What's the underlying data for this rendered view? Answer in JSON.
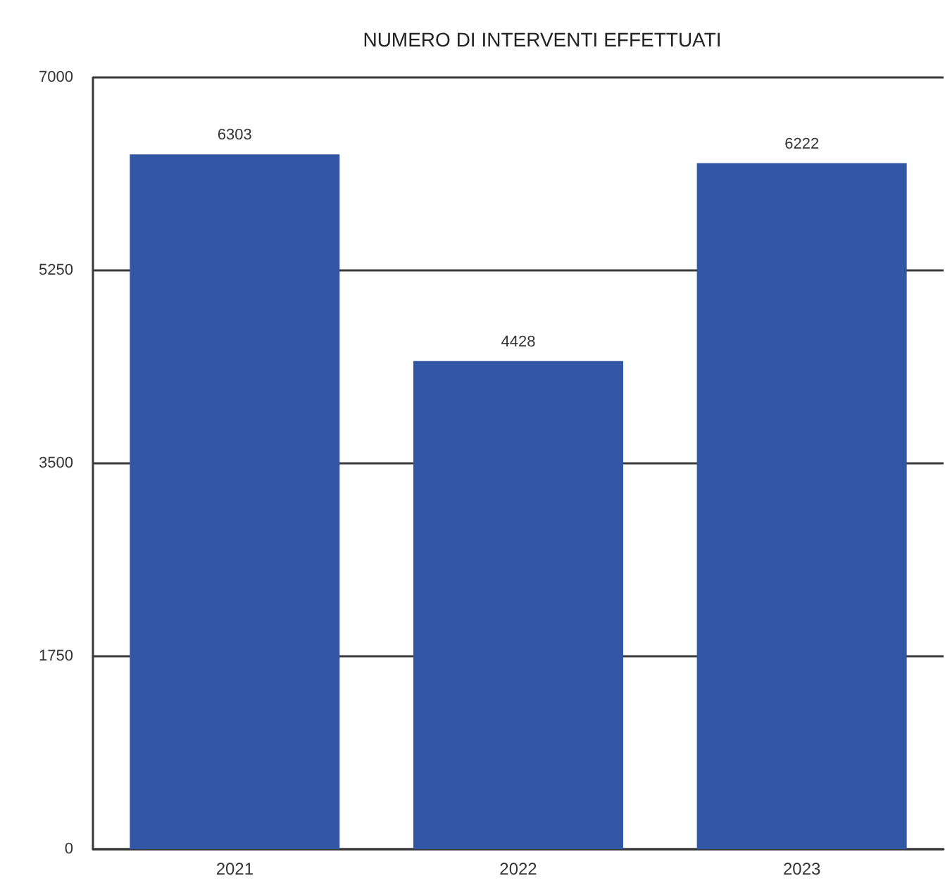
{
  "chart_data": {
    "type": "bar",
    "title": "NUMERO DI INTERVENTI EFFETTUATI",
    "categories": [
      "2021",
      "2022",
      "2023"
    ],
    "values": [
      6303,
      4428,
      6222
    ],
    "color": "#3157a4",
    "ylim": [
      0,
      7000
    ],
    "yticks": [
      0,
      1750,
      3500,
      5250,
      7000
    ],
    "grid": "y",
    "data_labels": true
  }
}
